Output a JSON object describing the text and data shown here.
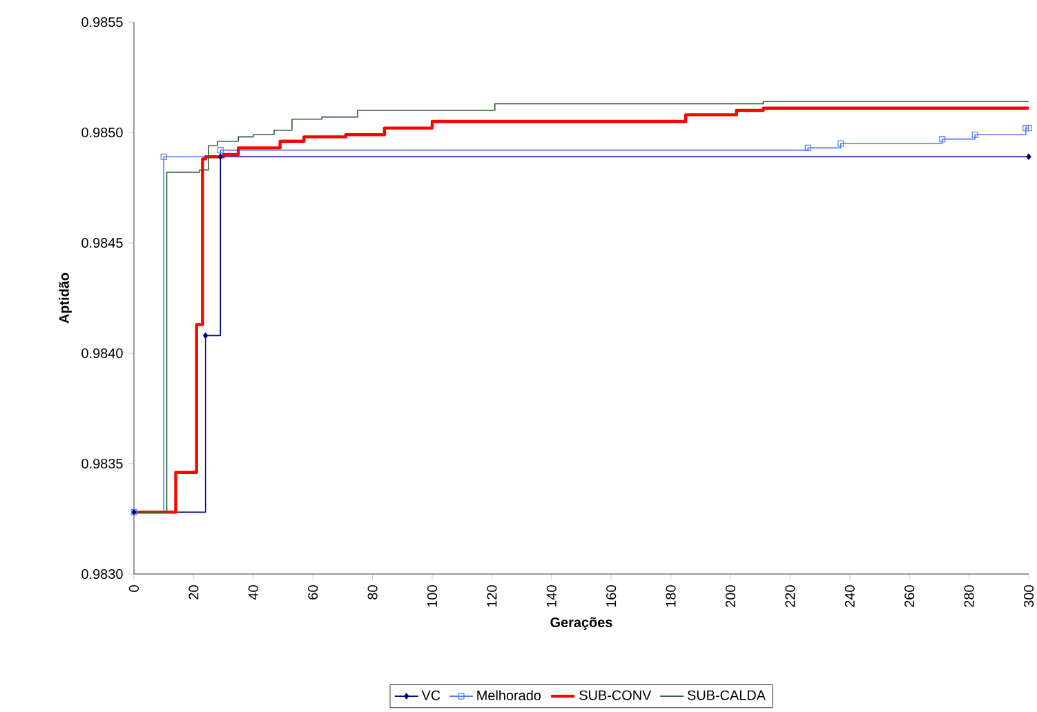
{
  "chart_data": {
    "type": "step",
    "xlabel": "Gerações",
    "ylabel": "Aptidão",
    "xlim": [
      0,
      300
    ],
    "xticks": [
      0,
      20,
      40,
      60,
      80,
      100,
      120,
      140,
      160,
      180,
      200,
      220,
      240,
      260,
      280,
      300
    ],
    "ylim": [
      0.983,
      0.9855
    ],
    "yticks": [
      {
        "value": 0.983,
        "label": "0.9830"
      },
      {
        "value": 0.9835,
        "label": "0.9835"
      },
      {
        "value": 0.984,
        "label": "0.9840"
      },
      {
        "value": 0.9845,
        "label": "0.9845"
      },
      {
        "value": 0.985,
        "label": "0.9850"
      },
      {
        "value": 0.9855,
        "label": "0.9855"
      }
    ],
    "legend": "bottom",
    "line_style": "solid",
    "series": [
      {
        "name": "VC",
        "color": "#000080",
        "marker": "diamond",
        "x": [
          0,
          24,
          29,
          300
        ],
        "values": [
          0.98328,
          0.98408,
          0.98489,
          0.98489
        ]
      },
      {
        "name": "Melhorado",
        "color": "#4a78ff",
        "marker": "square",
        "x": [
          0,
          10,
          29,
          226,
          237,
          271,
          282,
          299,
          300
        ],
        "values": [
          0.98328,
          0.98489,
          0.98492,
          0.98493,
          0.98495,
          0.98497,
          0.98499,
          0.98502,
          0.98502
        ]
      },
      {
        "name": "SUB-CONV",
        "color": "#ff0000",
        "marker": "none",
        "x": [
          0,
          14,
          21,
          23,
          24,
          30,
          35,
          49,
          57,
          71,
          84,
          100,
          185,
          202,
          211,
          300
        ],
        "values": [
          0.98328,
          0.98346,
          0.98413,
          0.98488,
          0.98489,
          0.9849,
          0.98493,
          0.98496,
          0.98498,
          0.98499,
          0.98502,
          0.98505,
          0.98508,
          0.9851,
          0.98511,
          0.98511
        ]
      },
      {
        "name": "SUB-CALDA",
        "color": "#2e5e2e",
        "marker": "none",
        "x": [
          0,
          11,
          22,
          25,
          28,
          35,
          40,
          47,
          53,
          63,
          75,
          121,
          211,
          300
        ],
        "values": [
          0.98328,
          0.98482,
          0.98483,
          0.98494,
          0.98496,
          0.98498,
          0.98499,
          0.98501,
          0.98506,
          0.98507,
          0.9851,
          0.98513,
          0.98514,
          0.98514
        ]
      }
    ]
  }
}
